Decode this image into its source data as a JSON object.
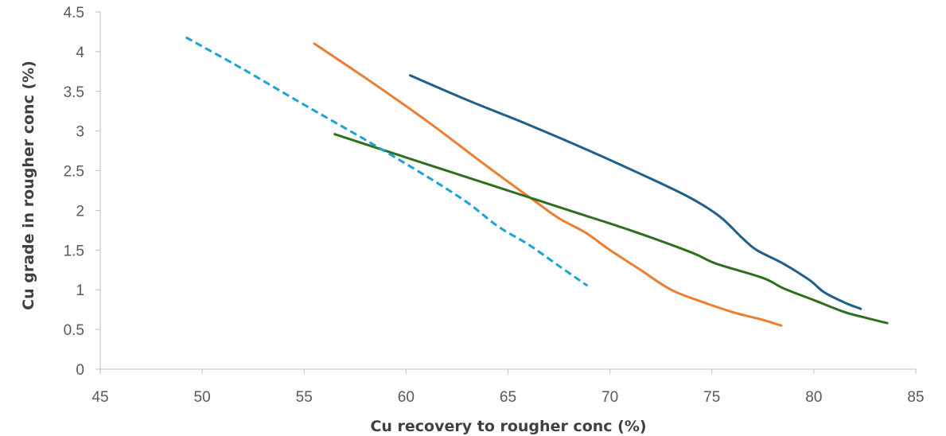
{
  "chart_data": {
    "type": "line",
    "xlabel": "Cu recovery to rougher conc (%)",
    "ylabel": "Cu grade in rougher conc (%)",
    "xlim": [
      45,
      85
    ],
    "ylim": [
      0,
      4.5
    ],
    "x_ticks": [
      "45",
      "50",
      "55",
      "60",
      "65",
      "70",
      "75",
      "80",
      "85"
    ],
    "y_ticks": [
      "0",
      "0.5",
      "1",
      "1.5",
      "2",
      "2.5",
      "3",
      "3.5",
      "4",
      "4.5"
    ],
    "grid": false,
    "legend": "none",
    "series": [
      {
        "color": "#1f5f8b",
        "dash": "solid",
        "points": [
          [
            60.2,
            3.7
          ],
          [
            63,
            3.39
          ],
          [
            66,
            3.08
          ],
          [
            69,
            2.75
          ],
          [
            72,
            2.4
          ],
          [
            74,
            2.15
          ],
          [
            75.4,
            1.92
          ],
          [
            76.5,
            1.65
          ],
          [
            77.2,
            1.5
          ],
          [
            78.5,
            1.33
          ],
          [
            79.8,
            1.12
          ],
          [
            80.5,
            0.97
          ],
          [
            81.5,
            0.84
          ],
          [
            82.3,
            0.76
          ]
        ]
      },
      {
        "color": "#ed7d31",
        "dash": "solid",
        "points": [
          [
            55.5,
            4.1
          ],
          [
            58,
            3.67
          ],
          [
            61,
            3.13
          ],
          [
            64,
            2.55
          ],
          [
            66.3,
            2.12
          ],
          [
            67.5,
            1.9
          ],
          [
            68.8,
            1.72
          ],
          [
            70,
            1.5
          ],
          [
            71.5,
            1.25
          ],
          [
            73,
            1.0
          ],
          [
            74.5,
            0.85
          ],
          [
            76,
            0.72
          ],
          [
            77.5,
            0.62
          ],
          [
            78.4,
            0.55
          ]
        ]
      },
      {
        "color": "#2e6f1e",
        "dash": "solid",
        "points": [
          [
            56.5,
            2.96
          ],
          [
            59,
            2.75
          ],
          [
            62,
            2.5
          ],
          [
            65,
            2.25
          ],
          [
            68,
            2.0
          ],
          [
            71,
            1.75
          ],
          [
            74,
            1.47
          ],
          [
            75.2,
            1.33
          ],
          [
            77.5,
            1.15
          ],
          [
            78.5,
            1.02
          ],
          [
            80,
            0.87
          ],
          [
            81.5,
            0.72
          ],
          [
            82.5,
            0.65
          ],
          [
            83.6,
            0.58
          ]
        ]
      },
      {
        "color": "#1aa3d5",
        "dash": "dashed",
        "points": [
          [
            49.2,
            4.18
          ],
          [
            52,
            3.78
          ],
          [
            55,
            3.33
          ],
          [
            58,
            2.89
          ],
          [
            61,
            2.43
          ],
          [
            63,
            2.1
          ],
          [
            64.5,
            1.8
          ],
          [
            66,
            1.57
          ],
          [
            67.5,
            1.3
          ],
          [
            68.9,
            1.05
          ]
        ]
      }
    ]
  }
}
